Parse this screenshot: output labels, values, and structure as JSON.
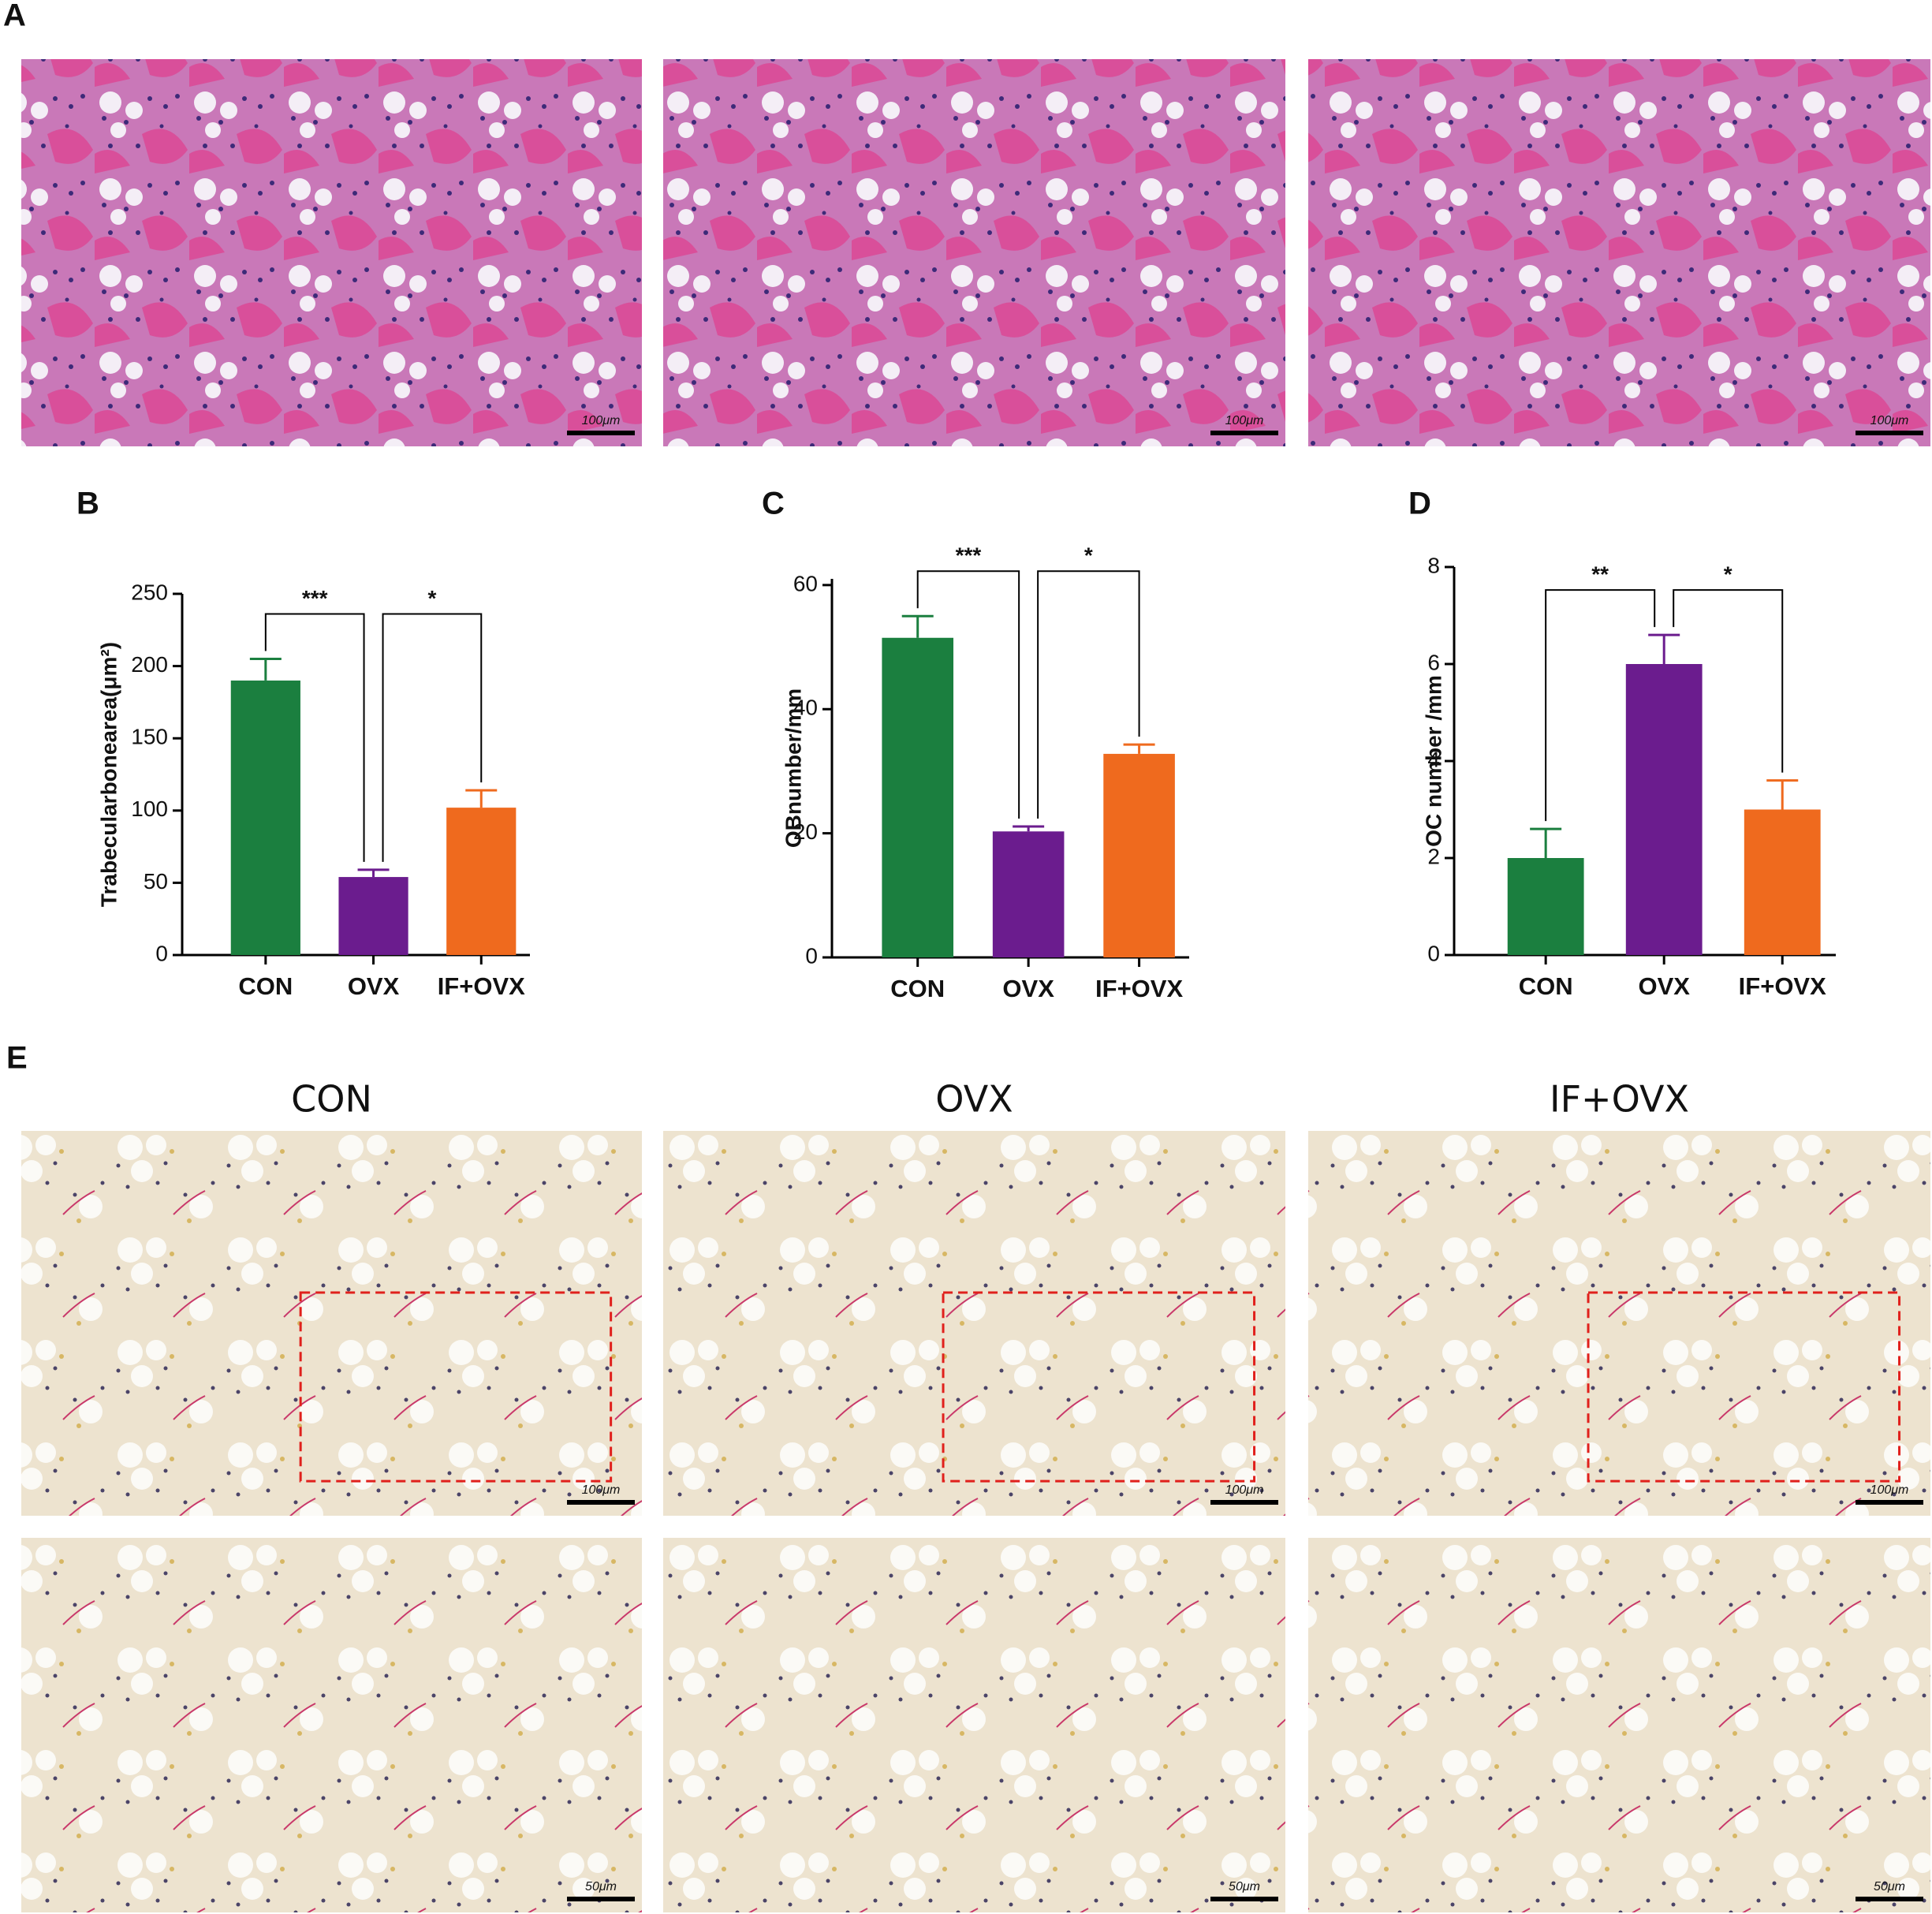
{
  "panel_labels": [
    "A",
    "B",
    "C",
    "D",
    "E"
  ],
  "column_titles": [
    "CON",
    "OVX",
    "IF+OVX"
  ],
  "scale_bars": {
    "a": [
      "100μm",
      "100μm",
      "100μm"
    ],
    "e_top": [
      "100μm",
      "100μm",
      "100μm"
    ],
    "e_bottom": [
      "50μm",
      "50μm",
      "50μm"
    ]
  },
  "chart_data": [
    {
      "type": "bar",
      "y_label": "Trabecularbonearea(μm²)",
      "categories": [
        "CON",
        "OVX",
        "IF+OVX"
      ],
      "values": [
        190,
        54,
        102
      ],
      "errors": [
        15,
        5,
        12
      ],
      "colors": [
        "#1b7f3f",
        "#6b1c8e",
        "#ef6a1e"
      ],
      "ylim": [
        0,
        250
      ],
      "yticks": [
        0,
        50,
        100,
        150,
        200,
        250
      ],
      "comparisons": [
        {
          "between": [
            0,
            1
          ],
          "label": "***"
        },
        {
          "between": [
            1,
            2
          ],
          "label": "*"
        }
      ]
    },
    {
      "type": "bar",
      "y_label": "OBnumber/mm",
      "categories": [
        "CON",
        "OVX",
        "IF+OVX"
      ],
      "values": [
        51.5,
        20.3,
        32.8
      ],
      "errors": [
        3.5,
        0.8,
        1.5
      ],
      "colors": [
        "#1b7f3f",
        "#6b1c8e",
        "#ef6a1e"
      ],
      "ylim": [
        0,
        61
      ],
      "yticks": [
        0,
        20,
        40,
        60
      ],
      "comparisons": [
        {
          "between": [
            0,
            1
          ],
          "label": "***"
        },
        {
          "between": [
            1,
            2
          ],
          "label": "*"
        }
      ]
    },
    {
      "type": "bar",
      "y_label": "OC number /mm",
      "categories": [
        "CON",
        "OVX",
        "IF+OVX"
      ],
      "values": [
        2,
        6,
        3
      ],
      "errors": [
        0.6,
        0.6,
        0.6
      ],
      "colors": [
        "#1b7f3f",
        "#6b1c8e",
        "#ef6a1e"
      ],
      "ylim": [
        0,
        8
      ],
      "yticks": [
        0,
        2,
        4,
        6,
        8
      ],
      "comparisons": [
        {
          "between": [
            0,
            1
          ],
          "label": "**"
        },
        {
          "between": [
            1,
            2
          ],
          "label": "*"
        }
      ]
    }
  ]
}
